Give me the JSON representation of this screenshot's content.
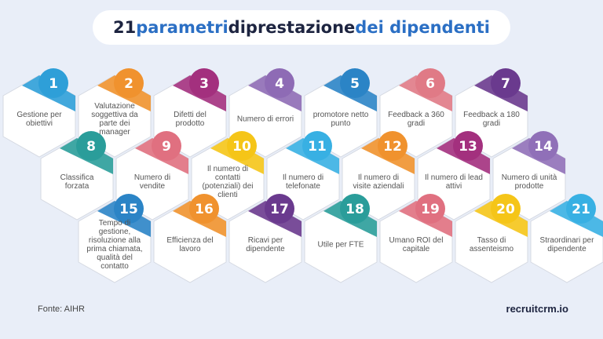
{
  "header": {
    "title": [
      "21",
      "parametri",
      "di",
      "prestazione",
      "dei dipendenti"
    ]
  },
  "items": [
    {
      "number": 1,
      "label": "Gestione per obiettivi",
      "color": "#2e9fd8"
    },
    {
      "number": 2,
      "label": "Valutazione soggettiva da parte dei manager",
      "color": "#f0922e"
    },
    {
      "number": 3,
      "label": "Difetti del prodotto",
      "color": "#a3307e"
    },
    {
      "number": 4,
      "label": "Numero di errori",
      "color": "#8e6bb5"
    },
    {
      "number": 5,
      "label": "promotore netto punto",
      "color": "#2b84c6"
    },
    {
      "number": 6,
      "label": "Feedback a 360 gradi",
      "color": "#e07a86"
    },
    {
      "number": 7,
      "label": "Feedback a 180 gradi",
      "color": "#6a3a8e"
    },
    {
      "number": 8,
      "label": "Classifica forzata",
      "color": "#2a9d9a"
    },
    {
      "number": 9,
      "label": "Numero di vendite",
      "color": "#e07080"
    },
    {
      "number": 10,
      "label": "Il numero di contatti (potenziali) dei clienti",
      "color": "#f5c518"
    },
    {
      "number": 11,
      "label": "Il numero di telefonate",
      "color": "#38b0e3"
    },
    {
      "number": 12,
      "label": "Il numero di visite aziendali",
      "color": "#f0922e"
    },
    {
      "number": 13,
      "label": "Il numero di lead attivi",
      "color": "#a3307e"
    },
    {
      "number": 14,
      "label": "Numero di unità prodotte",
      "color": "#9070b8"
    },
    {
      "number": 15,
      "label": "Tempo di gestione, risoluzione alla prima chiamata, qualità del contatto",
      "color": "#2b84c6"
    },
    {
      "number": 16,
      "label": "Efficienza del lavoro",
      "color": "#f0922e"
    },
    {
      "number": 17,
      "label": "Ricavi per dipendente",
      "color": "#6a3a8e"
    },
    {
      "number": 18,
      "label": "Utile per FTE",
      "color": "#2a9d9a"
    },
    {
      "number": 19,
      "label": "Umano ROI del capitale",
      "color": "#e07080"
    },
    {
      "number": 20,
      "label": "Tasso di assenteismo",
      "color": "#f5c518"
    },
    {
      "number": 21,
      "label": "Straordinari per dipendente",
      "color": "#38b0e3"
    }
  ],
  "footer": {
    "source": "Fonte: AIHR",
    "brand": "recruitcrm.io"
  }
}
